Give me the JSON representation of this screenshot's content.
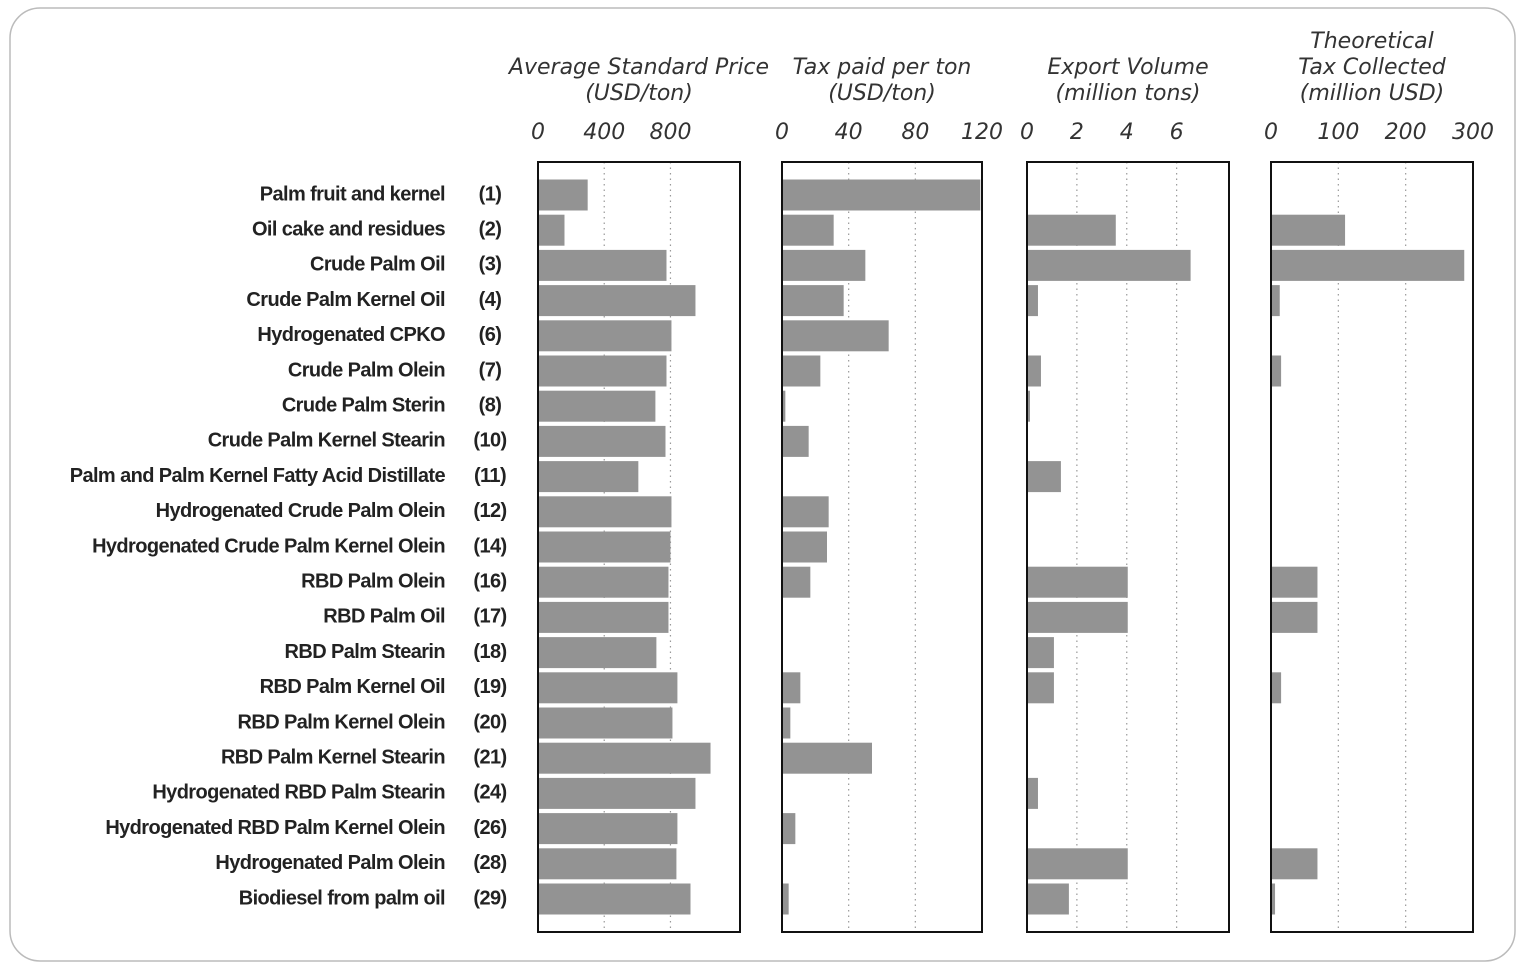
{
  "chart_data": {
    "type": "bar",
    "color": "#939393",
    "grid": true,
    "categories": [
      "Palm fruit and kernel",
      "Oil cake and residues",
      "Crude Palm Oil",
      "Crude Palm Kernel Oil",
      "Hydrogenated  CPKO",
      "Crude Palm Olein",
      "Crude Palm Sterin",
      "Crude Palm Kernel Stearin",
      "Palm and Palm Kernel Fatty Acid Distillate",
      "Hydrogenated Crude Palm Olein",
      "Hydrogenated Crude Palm Kernel Olein",
      "RBD Palm Olein",
      "RBD Palm Oil",
      "RBD Palm Stearin",
      "RBD Palm Kernel Oil",
      "RBD Palm Kernel Olein",
      "RBD Palm Kernel Stearin",
      "Hydrogenated RBD Palm Stearin",
      "Hydrogenated RBD Palm Kernel Olein",
      "Hydrogenated Palm Olein",
      "Biodiesel from palm oil"
    ],
    "codes": [
      "(1)",
      "(2)",
      "(3)",
      "(4)",
      "(6)",
      "(7)",
      "(8)",
      "(10)",
      "(11)",
      "(12)",
      "(14)",
      "(16)",
      "(17)",
      "(18)",
      "(19)",
      "(20)",
      "(21)",
      "(24)",
      "(26)",
      "(28)",
      "(29)"
    ],
    "panels": [
      {
        "title": [
          "Average Standard Price",
          "(USD/ton)"
        ],
        "xlim": [
          0,
          1220
        ],
        "xticks": [
          0,
          400,
          800
        ],
        "values": [
          300,
          160,
          776,
          951,
          806,
          776,
          709,
          770,
          606,
          806,
          800,
          788,
          788,
          715,
          842,
          812,
          1042,
          951,
          842,
          836,
          921
        ]
      },
      {
        "title": [
          "Tax paid per ton",
          "(USD/ton)"
        ],
        "xlim": [
          0,
          120
        ],
        "xticks": [
          0,
          40,
          80,
          120
        ],
        "values": [
          119,
          31,
          50,
          37,
          64,
          23,
          2,
          16,
          0,
          28,
          27,
          17,
          0,
          0,
          11,
          5,
          54,
          0,
          8,
          0,
          4
        ]
      },
      {
        "title": [
          "Export Volume",
          "(million tons)"
        ],
        "xlim": [
          0,
          8.1
        ],
        "xticks": [
          0,
          2,
          4,
          6
        ],
        "values": [
          0,
          3.56,
          6.56,
          0.44,
          0,
          0.56,
          0.12,
          0,
          1.36,
          0,
          0,
          4.04,
          4.04,
          1.08,
          1.08,
          0.04,
          0,
          0.44,
          0,
          4.04,
          1.68
        ]
      },
      {
        "title": [
          "Theoretical",
          "Tax Collected",
          "(million USD)"
        ],
        "xlim": [
          0,
          300
        ],
        "xticks": [
          0,
          100,
          200,
          300
        ],
        "values": [
          0,
          110,
          287,
          13,
          0,
          15,
          0,
          0,
          0,
          0,
          0,
          69,
          69,
          0,
          15,
          0,
          0,
          0,
          0,
          69,
          6
        ]
      }
    ]
  }
}
